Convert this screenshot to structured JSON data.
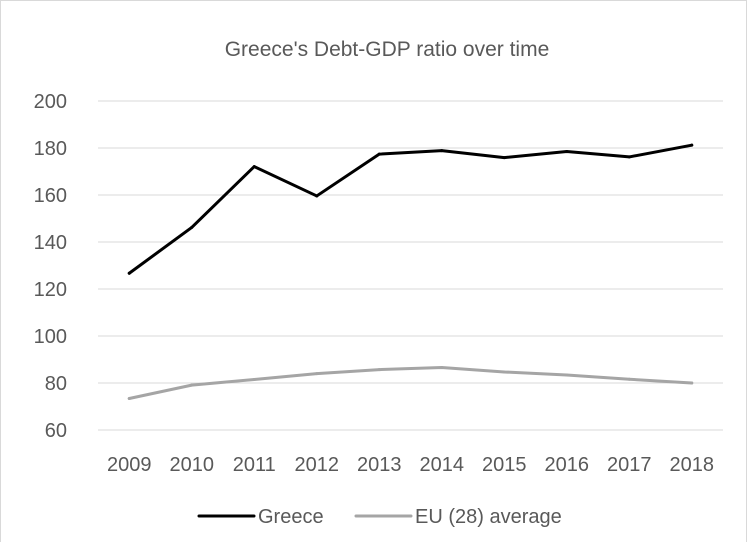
{
  "chart_data": {
    "type": "line",
    "title": "Greece's Debt-GDP ratio over time",
    "xlabel": "",
    "ylabel": "",
    "categories": [
      "2009",
      "2010",
      "2011",
      "2012",
      "2013",
      "2014",
      "2015",
      "2016",
      "2017",
      "2018"
    ],
    "ylim": [
      60,
      200
    ],
    "yticks": [
      "60",
      "80",
      "100",
      "120",
      "140",
      "160",
      "180",
      "200"
    ],
    "grid": true,
    "legend_position": "bottom",
    "series": [
      {
        "name": "Greece",
        "color": "#000000",
        "values": [
          126.7,
          146.2,
          172.1,
          159.6,
          177.4,
          178.9,
          175.9,
          178.5,
          176.2,
          181.2
        ]
      },
      {
        "name": "EU (28) average",
        "color": "#a5a5a5",
        "values": [
          73.4,
          79.1,
          81.5,
          84.0,
          85.7,
          86.6,
          84.7,
          83.4,
          81.6,
          80.0
        ]
      }
    ]
  }
}
